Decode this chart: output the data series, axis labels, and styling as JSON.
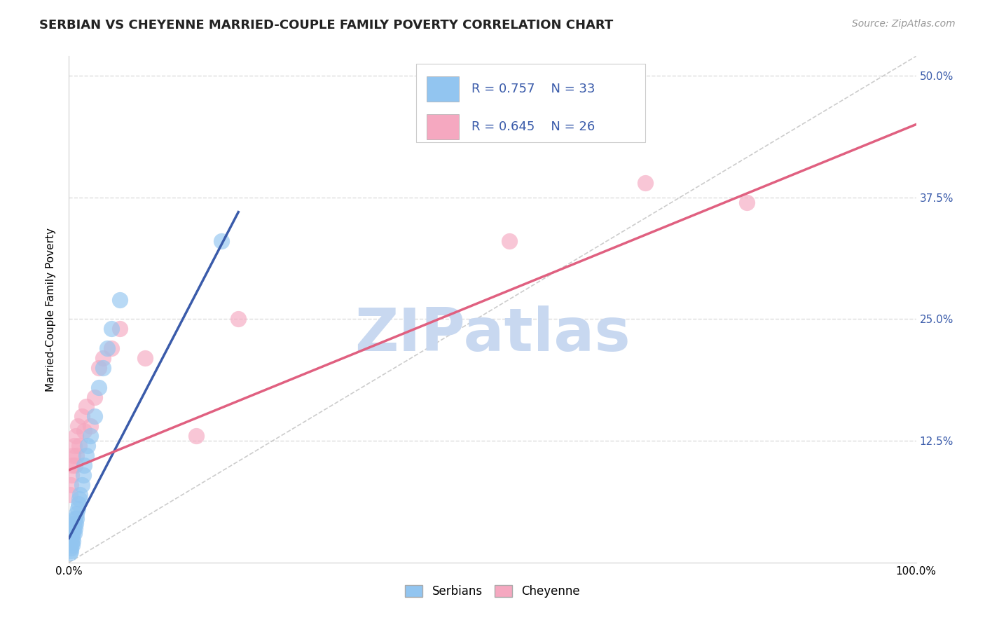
{
  "title": "SERBIAN VS CHEYENNE MARRIED-COUPLE FAMILY POVERTY CORRELATION CHART",
  "source_text": "Source: ZipAtlas.com",
  "ylabel": "Married-Couple Family Poverty",
  "xlim": [
    0,
    100
  ],
  "ylim": [
    0,
    52
  ],
  "xtick_labels": [
    "0.0%",
    "",
    "",
    "",
    "",
    "",
    "",
    "",
    "100.0%"
  ],
  "xtick_vals": [
    0,
    12.5,
    25,
    37.5,
    50,
    62.5,
    75,
    87.5,
    100
  ],
  "ytick_vals": [
    0,
    12.5,
    25,
    37.5,
    50
  ],
  "ytick_labels_right": [
    "",
    "12.5%",
    "25.0%",
    "37.5%",
    "50.0%"
  ],
  "legend_serbian": "R = 0.757    N = 33",
  "legend_cheyenne": "R = 0.645    N = 26",
  "serbian_color": "#92C5F0",
  "cheyenne_color": "#F5A8C0",
  "serbian_line_color": "#3A5BAA",
  "cheyenne_line_color": "#E06080",
  "ref_line_color": "#C0C0C0",
  "watermark": "ZIPatlas",
  "watermark_color": "#C8D8F0",
  "grid_color": "#DDDDDD",
  "background_color": "#FFFFFF",
  "serbian_scatter_x": [
    0.15,
    0.2,
    0.25,
    0.3,
    0.35,
    0.4,
    0.45,
    0.5,
    0.55,
    0.6,
    0.65,
    0.7,
    0.75,
    0.8,
    0.85,
    0.9,
    1.0,
    1.1,
    1.2,
    1.3,
    1.5,
    1.7,
    1.8,
    2.0,
    2.2,
    2.5,
    3.0,
    3.5,
    4.0,
    4.5,
    5.0,
    6.0,
    18.0
  ],
  "serbian_scatter_y": [
    1.0,
    1.5,
    1.2,
    2.0,
    1.8,
    2.5,
    2.2,
    3.0,
    3.5,
    3.0,
    4.0,
    3.5,
    4.5,
    4.0,
    5.0,
    4.5,
    5.5,
    6.0,
    6.5,
    7.0,
    8.0,
    9.0,
    10.0,
    11.0,
    12.0,
    13.0,
    15.0,
    18.0,
    20.0,
    22.0,
    24.0,
    27.0,
    33.0
  ],
  "cheyenne_scatter_x": [
    0.1,
    0.2,
    0.3,
    0.4,
    0.5,
    0.6,
    0.7,
    0.8,
    0.9,
    1.0,
    1.2,
    1.5,
    1.8,
    2.0,
    2.5,
    3.0,
    3.5,
    4.0,
    5.0,
    6.0,
    9.0,
    15.0,
    20.0,
    52.0,
    68.0,
    80.0
  ],
  "cheyenne_scatter_y": [
    7.0,
    8.0,
    9.0,
    10.0,
    11.0,
    12.0,
    10.0,
    13.0,
    11.0,
    14.0,
    12.0,
    15.0,
    13.5,
    16.0,
    14.0,
    17.0,
    20.0,
    21.0,
    22.0,
    24.0,
    21.0,
    13.0,
    25.0,
    33.0,
    39.0,
    37.0
  ],
  "serb_line_x": [
    0,
    20
  ],
  "serb_line_y": [
    2.5,
    36.0
  ],
  "chey_line_x": [
    0,
    100
  ],
  "chey_line_y": [
    9.5,
    45.0
  ],
  "ref_line_x": [
    0,
    100
  ],
  "ref_line_y": [
    0,
    52
  ],
  "title_fontsize": 13,
  "axis_label_fontsize": 11,
  "tick_fontsize": 11,
  "source_fontsize": 10
}
